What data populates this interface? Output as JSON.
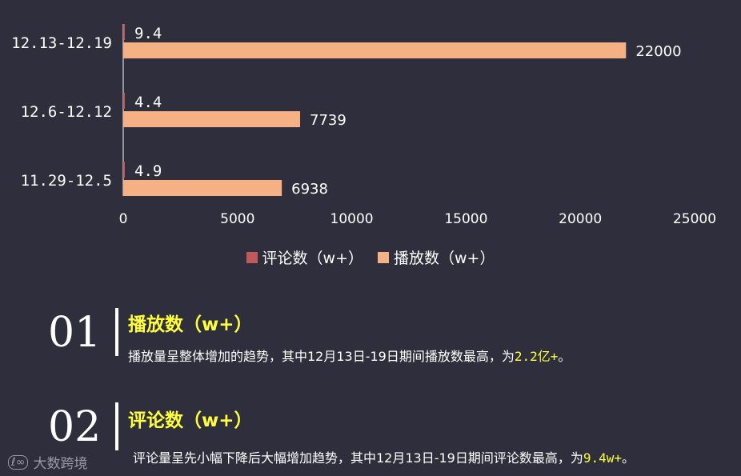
{
  "chart_data": {
    "type": "bar",
    "orientation": "horizontal",
    "categories": [
      "12.13-12.19",
      "12.6-12.12",
      "11.29-12.5"
    ],
    "series": [
      {
        "name": "评论数（w+）",
        "values": [
          9.4,
          4.4,
          4.9
        ],
        "color": "#c05a5a"
      },
      {
        "name": "播放数（w+）",
        "values": [
          22000,
          7739,
          6938
        ],
        "color": "#f5b084"
      }
    ],
    "xlim": [
      0,
      25000
    ],
    "xticks": [
      "0",
      "5000",
      "10000",
      "15000",
      "20000",
      "25000"
    ],
    "legend_position": "bottom",
    "grid": false
  },
  "sections": [
    {
      "num": "01",
      "heading": "播放数（w+）",
      "text": "播放量呈整体增加的趋势，其中12月13日-19日期间播放数最高，为",
      "highlight": "2.2亿+",
      "end": "。"
    },
    {
      "num": "02",
      "heading": "评论数（w+）",
      "text": "评论量呈先小幅下降后大幅增加趋势，其中12月13日-19日期间评论数最高，为",
      "highlight": "9.4w+",
      "end": "。"
    }
  ],
  "watermark": "大数跨境",
  "colors": {
    "background": "#2e2e3c",
    "highlight": "#ffff3c"
  }
}
